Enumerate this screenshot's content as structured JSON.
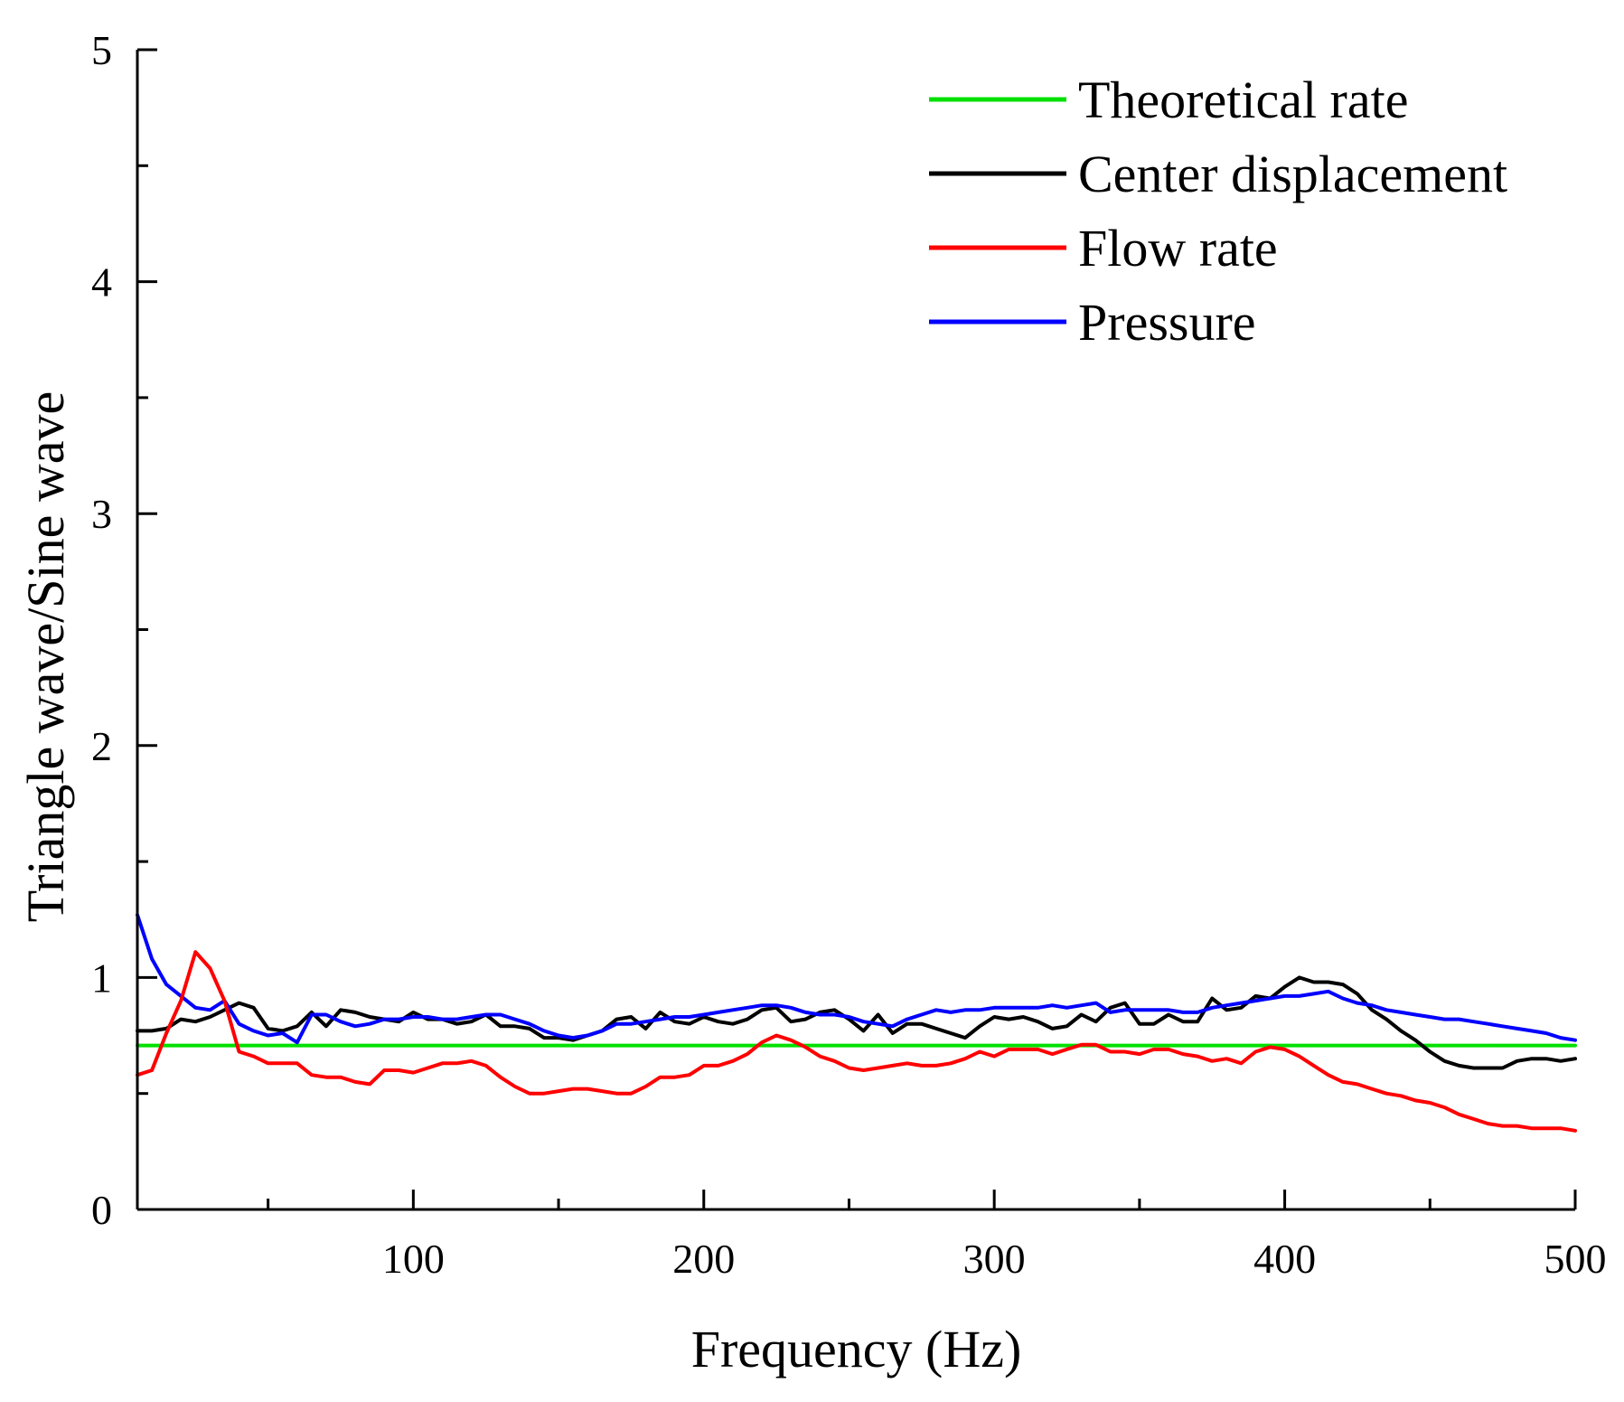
{
  "chart_data": {
    "type": "line",
    "title": "",
    "xlabel": "Frequency (Hz)",
    "ylabel": "Triangle wave/Sine wave",
    "xlim": [
      5,
      500
    ],
    "ylim": [
      0,
      5
    ],
    "x_major_ticks": [
      100,
      200,
      300,
      400,
      500
    ],
    "x_tick_labels": [
      "100",
      "200",
      "300",
      "400",
      "500"
    ],
    "x_minor_ticks": [
      50,
      150,
      250,
      350,
      450
    ],
    "y_major_ticks": [
      0,
      1,
      2,
      3,
      4,
      5
    ],
    "y_tick_labels": [
      "0",
      "1",
      "2",
      "3",
      "4",
      "5"
    ],
    "y_minor_ticks": [
      0.5,
      1.5,
      2.5,
      3.5,
      4.5
    ],
    "grid": false,
    "legend_position": "top-right",
    "series": [
      {
        "name": "Theoretical rate",
        "color": "#00e000",
        "x": [
          5,
          500
        ],
        "y": [
          0.707,
          0.707
        ]
      },
      {
        "name": "Center displacement",
        "color": "#000000",
        "x": [
          5,
          10,
          15,
          20,
          25,
          30,
          35,
          40,
          45,
          50,
          55,
          60,
          65,
          70,
          75,
          80,
          85,
          90,
          95,
          100,
          105,
          110,
          115,
          120,
          125,
          130,
          135,
          140,
          145,
          150,
          155,
          160,
          165,
          170,
          175,
          180,
          185,
          190,
          195,
          200,
          205,
          210,
          215,
          220,
          225,
          230,
          235,
          240,
          245,
          250,
          255,
          260,
          265,
          270,
          275,
          280,
          285,
          290,
          295,
          300,
          305,
          310,
          315,
          320,
          325,
          330,
          335,
          340,
          345,
          350,
          355,
          360,
          365,
          370,
          375,
          380,
          385,
          390,
          395,
          400,
          405,
          410,
          415,
          420,
          425,
          430,
          435,
          440,
          445,
          450,
          455,
          460,
          465,
          470,
          475,
          480,
          485,
          490,
          495,
          500
        ],
        "y": [
          0.77,
          0.77,
          0.78,
          0.82,
          0.81,
          0.83,
          0.86,
          0.89,
          0.87,
          0.78,
          0.77,
          0.79,
          0.85,
          0.79,
          0.86,
          0.85,
          0.83,
          0.82,
          0.81,
          0.85,
          0.82,
          0.82,
          0.8,
          0.81,
          0.84,
          0.79,
          0.79,
          0.78,
          0.74,
          0.74,
          0.73,
          0.75,
          0.77,
          0.82,
          0.83,
          0.78,
          0.85,
          0.81,
          0.8,
          0.83,
          0.81,
          0.8,
          0.82,
          0.86,
          0.87,
          0.81,
          0.82,
          0.85,
          0.86,
          0.82,
          0.77,
          0.84,
          0.76,
          0.8,
          0.8,
          0.78,
          0.76,
          0.74,
          0.79,
          0.83,
          0.82,
          0.83,
          0.81,
          0.78,
          0.79,
          0.84,
          0.81,
          0.87,
          0.89,
          0.8,
          0.8,
          0.84,
          0.81,
          0.81,
          0.91,
          0.86,
          0.87,
          0.92,
          0.91,
          0.96,
          1.0,
          0.98,
          0.98,
          0.97,
          0.93,
          0.86,
          0.82,
          0.77,
          0.73,
          0.68,
          0.64,
          0.62,
          0.61,
          0.61,
          0.61,
          0.64,
          0.65,
          0.65,
          0.64,
          0.65
        ]
      },
      {
        "name": "Flow rate",
        "color": "#ff0000",
        "x": [
          5,
          10,
          15,
          20,
          25,
          30,
          35,
          40,
          45,
          50,
          55,
          60,
          65,
          70,
          75,
          80,
          85,
          90,
          95,
          100,
          105,
          110,
          115,
          120,
          125,
          130,
          135,
          140,
          145,
          150,
          155,
          160,
          165,
          170,
          175,
          180,
          185,
          190,
          195,
          200,
          205,
          210,
          215,
          220,
          225,
          230,
          235,
          240,
          245,
          250,
          255,
          260,
          265,
          270,
          275,
          280,
          285,
          290,
          295,
          300,
          305,
          310,
          315,
          320,
          325,
          330,
          335,
          340,
          345,
          350,
          355,
          360,
          365,
          370,
          375,
          380,
          385,
          390,
          395,
          400,
          405,
          410,
          415,
          420,
          425,
          430,
          435,
          440,
          445,
          450,
          455,
          460,
          465,
          470,
          475,
          480,
          485,
          490,
          495,
          500
        ],
        "y": [
          0.58,
          0.6,
          0.76,
          0.9,
          1.11,
          1.04,
          0.9,
          0.68,
          0.66,
          0.63,
          0.63,
          0.63,
          0.58,
          0.57,
          0.57,
          0.55,
          0.54,
          0.6,
          0.6,
          0.59,
          0.61,
          0.63,
          0.63,
          0.64,
          0.62,
          0.57,
          0.53,
          0.5,
          0.5,
          0.51,
          0.52,
          0.52,
          0.51,
          0.5,
          0.5,
          0.53,
          0.57,
          0.57,
          0.58,
          0.62,
          0.62,
          0.64,
          0.67,
          0.72,
          0.75,
          0.73,
          0.7,
          0.66,
          0.64,
          0.61,
          0.6,
          0.61,
          0.62,
          0.63,
          0.62,
          0.62,
          0.63,
          0.65,
          0.68,
          0.66,
          0.69,
          0.69,
          0.69,
          0.67,
          0.69,
          0.71,
          0.71,
          0.68,
          0.68,
          0.67,
          0.69,
          0.69,
          0.67,
          0.66,
          0.64,
          0.65,
          0.63,
          0.68,
          0.7,
          0.69,
          0.66,
          0.62,
          0.58,
          0.55,
          0.54,
          0.52,
          0.5,
          0.49,
          0.47,
          0.46,
          0.44,
          0.41,
          0.39,
          0.37,
          0.36,
          0.36,
          0.35,
          0.35,
          0.35,
          0.34
        ]
      },
      {
        "name": "Pressure",
        "color": "#0000ff",
        "x": [
          5,
          10,
          15,
          20,
          25,
          30,
          35,
          40,
          45,
          50,
          55,
          60,
          65,
          70,
          75,
          80,
          85,
          90,
          95,
          100,
          105,
          110,
          115,
          120,
          125,
          130,
          135,
          140,
          145,
          150,
          155,
          160,
          165,
          170,
          175,
          180,
          185,
          190,
          195,
          200,
          205,
          210,
          215,
          220,
          225,
          230,
          235,
          240,
          245,
          250,
          255,
          260,
          265,
          270,
          275,
          280,
          285,
          290,
          295,
          300,
          305,
          310,
          315,
          320,
          325,
          330,
          335,
          340,
          345,
          350,
          355,
          360,
          365,
          370,
          375,
          380,
          385,
          390,
          395,
          400,
          405,
          410,
          415,
          420,
          425,
          430,
          435,
          440,
          445,
          450,
          455,
          460,
          465,
          470,
          475,
          480,
          485,
          490,
          495,
          500
        ],
        "y": [
          1.27,
          1.08,
          0.97,
          0.92,
          0.87,
          0.86,
          0.9,
          0.8,
          0.77,
          0.75,
          0.76,
          0.72,
          0.84,
          0.84,
          0.81,
          0.79,
          0.8,
          0.82,
          0.82,
          0.83,
          0.83,
          0.82,
          0.82,
          0.83,
          0.84,
          0.84,
          0.82,
          0.8,
          0.77,
          0.75,
          0.74,
          0.75,
          0.77,
          0.8,
          0.8,
          0.81,
          0.82,
          0.83,
          0.83,
          0.84,
          0.85,
          0.86,
          0.87,
          0.88,
          0.88,
          0.87,
          0.85,
          0.84,
          0.84,
          0.83,
          0.81,
          0.8,
          0.79,
          0.82,
          0.84,
          0.86,
          0.85,
          0.86,
          0.86,
          0.87,
          0.87,
          0.87,
          0.87,
          0.88,
          0.87,
          0.88,
          0.89,
          0.85,
          0.86,
          0.86,
          0.86,
          0.86,
          0.85,
          0.85,
          0.87,
          0.88,
          0.89,
          0.9,
          0.91,
          0.92,
          0.92,
          0.93,
          0.94,
          0.91,
          0.89,
          0.88,
          0.86,
          0.85,
          0.84,
          0.83,
          0.82,
          0.82,
          0.81,
          0.8,
          0.79,
          0.78,
          0.77,
          0.76,
          0.74,
          0.73
        ]
      }
    ]
  }
}
